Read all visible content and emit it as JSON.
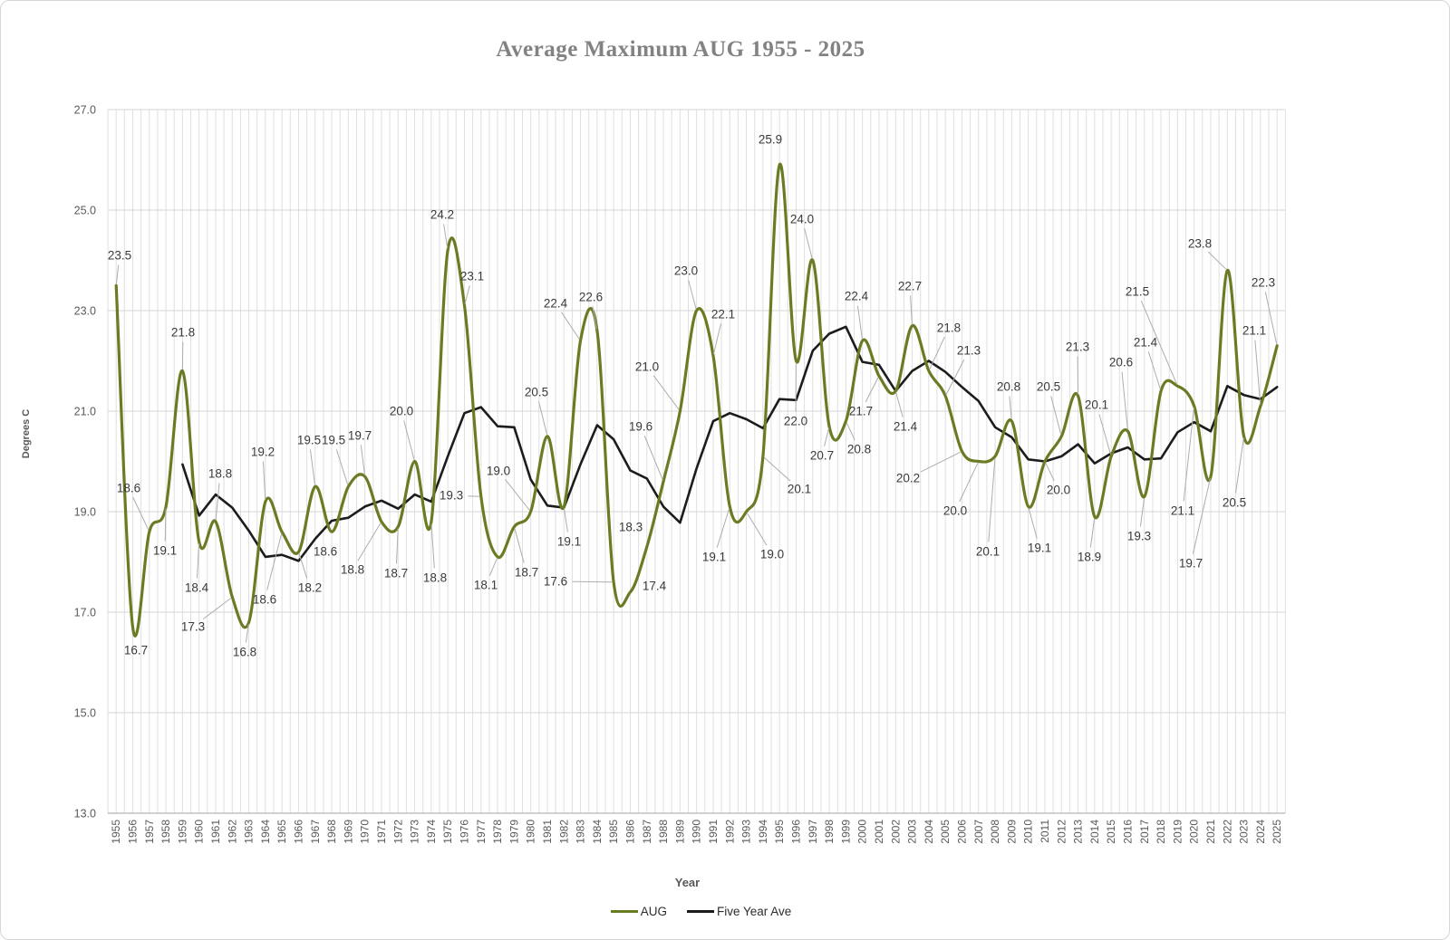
{
  "title": "Average Maximum AUG 1955 - 2025",
  "chart_data": {
    "type": "line",
    "title": "Average Maximum AUG 1955 - 2025",
    "xlabel": "Year",
    "ylabel": "Degrees C",
    "ylim": [
      13.0,
      27.0
    ],
    "yticks": [
      13.0,
      15.0,
      17.0,
      19.0,
      21.0,
      23.0,
      25.0,
      27.0
    ],
    "grid": true,
    "legend_position": "bottom",
    "x": [
      1955,
      1956,
      1957,
      1958,
      1959,
      1960,
      1961,
      1962,
      1963,
      1964,
      1965,
      1966,
      1967,
      1968,
      1969,
      1970,
      1971,
      1972,
      1973,
      1974,
      1975,
      1976,
      1977,
      1978,
      1979,
      1980,
      1981,
      1982,
      1983,
      1984,
      1985,
      1986,
      1987,
      1988,
      1989,
      1990,
      1991,
      1992,
      1993,
      1994,
      1995,
      1996,
      1997,
      1998,
      1999,
      2000,
      2001,
      2002,
      2003,
      2004,
      2005,
      2006,
      2007,
      2008,
      2009,
      2010,
      2011,
      2012,
      2013,
      2014,
      2015,
      2016,
      2017,
      2018,
      2019,
      2020,
      2021,
      2022,
      2023,
      2024,
      2025
    ],
    "series": [
      {
        "name": "AUG",
        "color": "#6a7c23",
        "smooth": true,
        "data_labels": true,
        "values": [
          23.5,
          16.7,
          18.6,
          19.1,
          21.8,
          18.4,
          18.8,
          17.3,
          16.8,
          19.2,
          18.6,
          18.2,
          19.5,
          18.6,
          19.5,
          19.7,
          18.8,
          18.7,
          20.0,
          18.8,
          24.2,
          23.1,
          19.3,
          18.1,
          18.7,
          19.0,
          20.5,
          19.1,
          22.4,
          22.6,
          17.6,
          17.4,
          18.3,
          19.6,
          21.0,
          23.0,
          22.1,
          19.1,
          19.0,
          20.1,
          25.9,
          22.0,
          24.0,
          20.7,
          20.8,
          22.4,
          21.7,
          21.4,
          22.7,
          21.8,
          21.3,
          20.2,
          20.0,
          20.1,
          20.8,
          19.1,
          20.0,
          20.5,
          21.3,
          18.9,
          20.1,
          20.6,
          19.3,
          21.4,
          21.5,
          21.1,
          19.7,
          23.8,
          20.5,
          21.1,
          22.3
        ]
      },
      {
        "name": "Five Year Ave",
        "color": "#1c1c1c",
        "smooth": false,
        "data_labels": false,
        "start_x": 1959,
        "values": [
          19.94,
          18.92,
          19.34,
          19.08,
          18.62,
          18.1,
          18.14,
          18.02,
          18.46,
          18.82,
          18.88,
          19.1,
          19.22,
          19.06,
          19.34,
          19.2,
          20.1,
          20.96,
          21.08,
          20.7,
          20.68,
          19.64,
          19.12,
          19.08,
          19.94,
          20.72,
          20.44,
          19.82,
          19.66,
          19.1,
          18.78,
          19.86,
          20.8,
          20.96,
          20.84,
          20.66,
          21.24,
          21.22,
          22.2,
          22.54,
          22.68,
          21.98,
          21.92,
          21.4,
          21.8,
          22.0,
          21.78,
          21.48,
          21.2,
          20.68,
          20.48,
          20.04,
          20.0,
          20.1,
          20.34,
          19.96,
          20.16,
          20.28,
          20.04,
          20.06,
          20.58,
          20.78,
          20.6,
          21.5,
          21.32,
          21.24,
          21.48
        ]
      }
    ]
  },
  "style": {
    "grid_color": "#dfdfdf",
    "hgrid_color": "#d6d6d6",
    "axis_line_color": "#b5b5b5",
    "axis_text_color": "#595959",
    "data_label_color": "#3a3a3a",
    "leader_color": "#adadad",
    "title_color": "#828282"
  }
}
